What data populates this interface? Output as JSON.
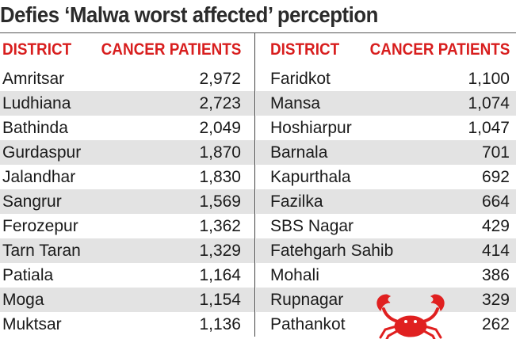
{
  "title": "Defies ‘Malwa worst affected’ perception",
  "headers": {
    "district": "DISTRICT",
    "patients": "CANCER PATIENTS"
  },
  "left_rows": [
    {
      "district": "Amritsar",
      "patients": "2,972"
    },
    {
      "district": "Ludhiana",
      "patients": "2,723"
    },
    {
      "district": "Bathinda",
      "patients": "2,049"
    },
    {
      "district": "Gurdaspur",
      "patients": "1,870"
    },
    {
      "district": "Jalandhar",
      "patients": "1,830"
    },
    {
      "district": "Sangrur",
      "patients": "1,569"
    },
    {
      "district": "Ferozepur",
      "patients": "1,362"
    },
    {
      "district": "Tarn Taran",
      "patients": "1,329"
    },
    {
      "district": "Patiala",
      "patients": "1,164"
    },
    {
      "district": "Moga",
      "patients": "1,154"
    },
    {
      "district": "Muktsar",
      "patients": "1,136"
    }
  ],
  "right_rows": [
    {
      "district": "Faridkot",
      "patients": "1,100"
    },
    {
      "district": "Mansa",
      "patients": "1,074"
    },
    {
      "district": "Hoshiarpur",
      "patients": "1,047"
    },
    {
      "district": "Barnala",
      "patients": "701"
    },
    {
      "district": "Kapurthala",
      "patients": "692"
    },
    {
      "district": "Fazilka",
      "patients": "664"
    },
    {
      "district": "SBS Nagar",
      "patients": "429"
    },
    {
      "district": "Fatehgarh Sahib",
      "patients": "414"
    },
    {
      "district": "Mohali",
      "patients": "386"
    },
    {
      "district": "Rupnagar",
      "patients": "329"
    },
    {
      "district": "Pathankot",
      "patients": "262"
    }
  ],
  "colors": {
    "header_red": "#d81e1e",
    "stripe": "#e3e3e3",
    "crab_red": "#e02020"
  },
  "icon": "crab-icon"
}
